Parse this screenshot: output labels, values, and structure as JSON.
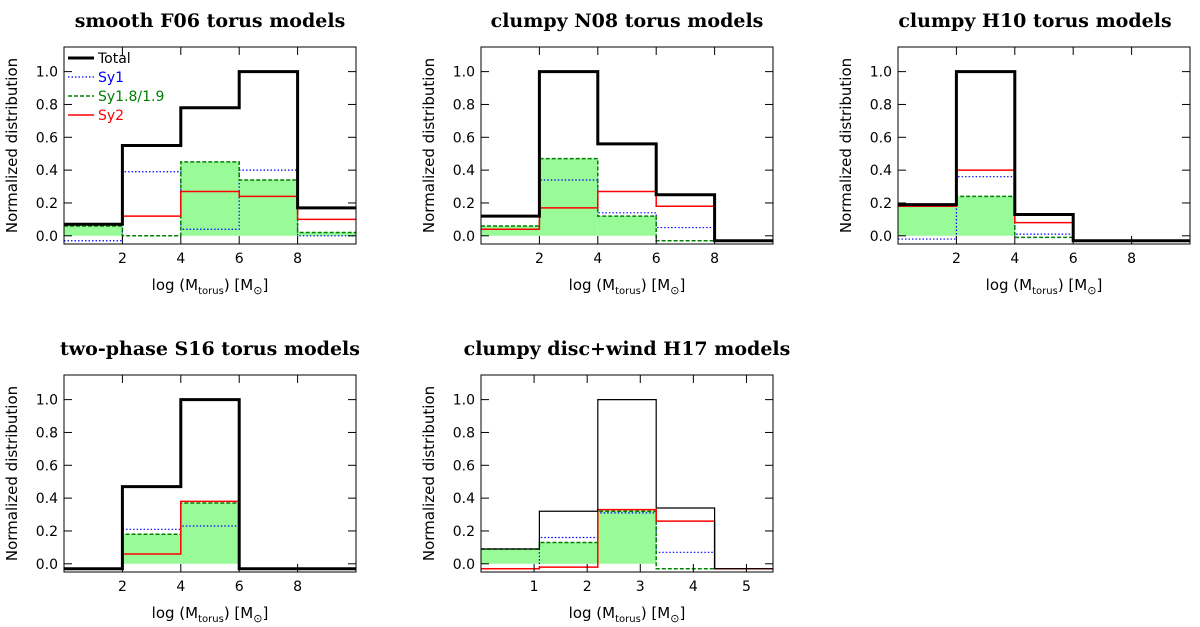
{
  "colors": {
    "total": "#000000",
    "sy1": "#0000ff",
    "sy19": "#008000",
    "sy2": "#ff0000",
    "fill": "#98fb98"
  },
  "chart_data": [
    {
      "type": "histogram",
      "title": "smooth F06 torus models",
      "xlabel": "log (M_torus) [M_sun]",
      "ylabel": "Normalized distribution",
      "xlim": [
        0,
        10
      ],
      "ylim": [
        -0.05,
        1.15
      ],
      "xticks": [
        "2",
        "4",
        "6",
        "8"
      ],
      "yticks": [
        "0.0",
        "0.2",
        "0.4",
        "0.6",
        "0.8",
        "1.0"
      ],
      "bin_edges": [
        0,
        2,
        4,
        6,
        8,
        10
      ],
      "legend": [
        "Total",
        "Sy1",
        "Sy1.8/1.9",
        "Sy2"
      ],
      "series": [
        {
          "name": "Total",
          "values": [
            0.07,
            0.55,
            0.78,
            1.0,
            0.17
          ]
        },
        {
          "name": "Sy1",
          "values": [
            -0.03,
            0.39,
            0.04,
            0.4,
            0.0
          ]
        },
        {
          "name": "Sy1.8/1.9",
          "values": [
            0.06,
            0.0,
            0.45,
            0.34,
            0.02
          ]
        },
        {
          "name": "Sy2",
          "values": [
            0.07,
            0.12,
            0.27,
            0.24,
            0.1
          ]
        }
      ]
    },
    {
      "type": "histogram",
      "title": "clumpy N08 torus models",
      "xlabel": "log (M_torus) [M_sun]",
      "ylabel": "Normalized distribution",
      "xlim": [
        0,
        10
      ],
      "ylim": [
        -0.05,
        1.15
      ],
      "xticks": [
        "2",
        "4",
        "6",
        "8"
      ],
      "yticks": [
        "0.0",
        "0.2",
        "0.4",
        "0.6",
        "0.8",
        "1.0"
      ],
      "bin_edges": [
        0,
        2,
        4,
        6,
        8,
        10
      ],
      "series": [
        {
          "name": "Total",
          "values": [
            0.12,
            1.0,
            0.56,
            0.25,
            -0.03
          ]
        },
        {
          "name": "Sy1",
          "values": [
            0.04,
            0.34,
            0.14,
            0.05,
            -0.03
          ]
        },
        {
          "name": "Sy1.8/1.9",
          "values": [
            0.06,
            0.47,
            0.12,
            -0.03,
            -0.03
          ]
        },
        {
          "name": "Sy2",
          "values": [
            0.04,
            0.17,
            0.27,
            0.18,
            -0.03
          ]
        }
      ]
    },
    {
      "type": "histogram",
      "title": "clumpy H10 torus models",
      "xlabel": "log (M_torus) [M_sun]",
      "ylabel": "Normalized distribution",
      "xlim": [
        0,
        10
      ],
      "ylim": [
        -0.05,
        1.15
      ],
      "xticks": [
        "2",
        "4",
        "6",
        "8"
      ],
      "yticks": [
        "0.0",
        "0.2",
        "0.4",
        "0.6",
        "0.8",
        "1.0"
      ],
      "bin_edges": [
        0,
        2,
        4,
        6,
        8,
        10
      ],
      "series": [
        {
          "name": "Total",
          "values": [
            0.19,
            1.0,
            0.13,
            -0.03,
            -0.03
          ]
        },
        {
          "name": "Sy1",
          "values": [
            -0.02,
            0.36,
            0.01,
            -0.03,
            -0.03
          ]
        },
        {
          "name": "Sy1.8/1.9",
          "values": [
            0.18,
            0.24,
            -0.01,
            -0.03,
            -0.03
          ]
        },
        {
          "name": "Sy2",
          "values": [
            0.18,
            0.4,
            0.08,
            -0.03,
            -0.03
          ]
        }
      ]
    },
    {
      "type": "histogram",
      "title": "two-phase S16 torus models",
      "xlabel": "log (M_torus) [M_sun]",
      "ylabel": "Normalized distribution",
      "xlim": [
        0,
        10
      ],
      "ylim": [
        -0.05,
        1.15
      ],
      "xticks": [
        "2",
        "4",
        "6",
        "8"
      ],
      "yticks": [
        "0.0",
        "0.2",
        "0.4",
        "0.6",
        "0.8",
        "1.0"
      ],
      "bin_edges": [
        0,
        2,
        4,
        6,
        8,
        10
      ],
      "series": [
        {
          "name": "Total",
          "values": [
            -0.03,
            0.47,
            1.0,
            -0.03,
            -0.03
          ]
        },
        {
          "name": "Sy1",
          "values": [
            -0.03,
            0.21,
            0.23,
            -0.03,
            -0.03
          ]
        },
        {
          "name": "Sy1.8/1.9",
          "values": [
            -0.03,
            0.18,
            0.37,
            -0.03,
            -0.03
          ]
        },
        {
          "name": "Sy2",
          "values": [
            -0.03,
            0.06,
            0.38,
            -0.03,
            -0.03
          ]
        }
      ]
    },
    {
      "type": "histogram",
      "title": "clumpy disc+wind H17 models",
      "xlabel": "log (M_torus) [M_sun]",
      "ylabel": "Normalized distribution",
      "xlim": [
        0,
        5.5
      ],
      "ylim": [
        -0.05,
        1.15
      ],
      "xticks": [
        "1",
        "2",
        "3",
        "4",
        "5"
      ],
      "yticks": [
        "0.0",
        "0.2",
        "0.4",
        "0.6",
        "0.8",
        "1.0"
      ],
      "bin_edges": [
        0,
        1.1,
        2.2,
        3.3,
        4.4,
        5.5
      ],
      "series": [
        {
          "name": "Total",
          "values": [
            0.09,
            0.32,
            1.0,
            0.34,
            -0.03
          ]
        },
        {
          "name": "Sy1",
          "values": [
            -0.03,
            0.16,
            0.31,
            0.07,
            -0.03
          ]
        },
        {
          "name": "Sy1.8/1.9",
          "values": [
            0.09,
            0.13,
            0.32,
            -0.03,
            -0.03
          ]
        },
        {
          "name": "Sy2",
          "values": [
            -0.03,
            -0.02,
            0.33,
            0.26,
            -0.03
          ]
        }
      ]
    }
  ]
}
